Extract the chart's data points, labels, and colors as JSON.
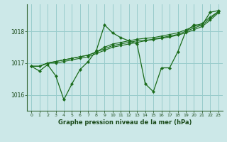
{
  "title": "Graphe pression niveau de la mer (hPa)",
  "bg_color": "#cce8e8",
  "grid_color": "#99cccc",
  "line_color": "#1a6b1a",
  "xlim": [
    -0.5,
    23.5
  ],
  "ylim": [
    1015.5,
    1018.85
  ],
  "yticks": [
    1016,
    1017,
    1018
  ],
  "xticks": [
    0,
    1,
    2,
    3,
    4,
    5,
    6,
    7,
    8,
    9,
    10,
    11,
    12,
    13,
    14,
    15,
    16,
    17,
    18,
    19,
    20,
    21,
    22,
    23
  ],
  "series": [
    [
      1016.9,
      1016.75,
      1016.95,
      1016.6,
      1015.85,
      1016.35,
      1016.8,
      1017.05,
      1017.4,
      1018.2,
      1017.95,
      1017.8,
      1017.7,
      1017.6,
      1016.35,
      1016.1,
      1016.85,
      1016.85,
      1017.35,
      1018.0,
      1018.2,
      1018.2,
      1018.6,
      1018.65
    ],
    [
      1016.9,
      1016.9,
      1017.0,
      1017.0,
      1017.05,
      1017.1,
      1017.15,
      1017.2,
      1017.3,
      1017.4,
      1017.5,
      1017.55,
      1017.6,
      1017.65,
      1017.7,
      1017.75,
      1017.8,
      1017.85,
      1017.9,
      1018.0,
      1018.1,
      1018.2,
      1018.4,
      1018.62
    ],
    [
      1016.9,
      1016.9,
      1017.0,
      1017.05,
      1017.1,
      1017.15,
      1017.2,
      1017.25,
      1017.35,
      1017.45,
      1017.55,
      1017.6,
      1017.65,
      1017.7,
      1017.72,
      1017.74,
      1017.78,
      1017.82,
      1017.88,
      1017.95,
      1018.05,
      1018.15,
      1018.35,
      1018.58
    ],
    [
      1016.9,
      1016.9,
      1017.0,
      1017.05,
      1017.1,
      1017.15,
      1017.2,
      1017.25,
      1017.35,
      1017.5,
      1017.6,
      1017.65,
      1017.7,
      1017.75,
      1017.78,
      1017.8,
      1017.85,
      1017.9,
      1017.95,
      1018.05,
      1018.15,
      1018.25,
      1018.45,
      1018.62
    ]
  ]
}
